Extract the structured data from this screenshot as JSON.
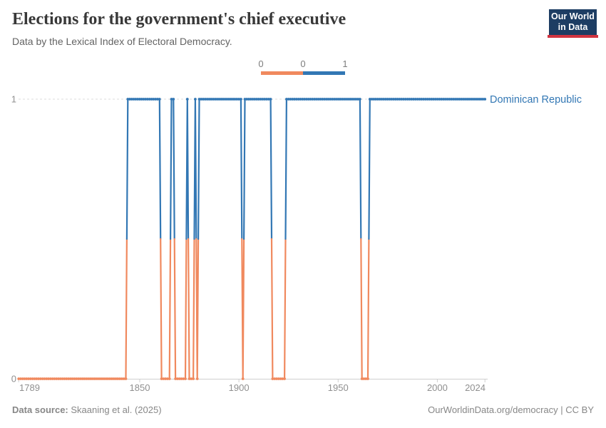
{
  "header": {
    "title": "Elections for the government's chief executive",
    "subtitle": "Data by the Lexical Index of Electoral Democracy.",
    "logo": {
      "line1": "Our World",
      "line2": "in Data"
    }
  },
  "legend": {
    "tick_labels": [
      "0",
      "0",
      "1"
    ],
    "segment_colors": [
      "#F0895E",
      "#3277B4"
    ]
  },
  "chart_data": {
    "type": "line",
    "title": "Elections for the government's chief executive",
    "entity": "Dominican Republic",
    "entity_color": "#3277B4",
    "xlabel": "",
    "ylabel": "",
    "x_ticks": [
      1789,
      1850,
      1900,
      1950,
      2000,
      2024
    ],
    "x_range": [
      1789,
      2024
    ],
    "y_ticks": [
      0,
      1
    ],
    "y_range": [
      0,
      1
    ],
    "grid": "dashed line at y=1, solid axis at y=0",
    "legend_position": "top-center",
    "value_colors": {
      "0": "#F0895E",
      "1": "#3277B4"
    },
    "segments": [
      {
        "start": 1789,
        "end": 1843,
        "value": 0
      },
      {
        "start": 1844,
        "end": 1860,
        "value": 1
      },
      {
        "start": 1861,
        "end": 1865,
        "value": 0
      },
      {
        "start": 1866,
        "end": 1867,
        "value": 1
      },
      {
        "start": 1868,
        "end": 1873,
        "value": 0
      },
      {
        "start": 1874,
        "end": 1874,
        "value": 1
      },
      {
        "start": 1875,
        "end": 1877,
        "value": 0
      },
      {
        "start": 1878,
        "end": 1878,
        "value": 1
      },
      {
        "start": 1879,
        "end": 1879,
        "value": 0
      },
      {
        "start": 1880,
        "end": 1901,
        "value": 1
      },
      {
        "start": 1902,
        "end": 1902,
        "value": 0
      },
      {
        "start": 1903,
        "end": 1916,
        "value": 1
      },
      {
        "start": 1917,
        "end": 1923,
        "value": 0
      },
      {
        "start": 1924,
        "end": 1961,
        "value": 1
      },
      {
        "start": 1962,
        "end": 1965,
        "value": 0
      },
      {
        "start": 1966,
        "end": 2024,
        "value": 1
      }
    ]
  },
  "footer": {
    "source_label": "Data source:",
    "source_value": " Skaaning et al. (2025)",
    "attribution": "OurWorldinData.org/democracy | CC BY"
  }
}
